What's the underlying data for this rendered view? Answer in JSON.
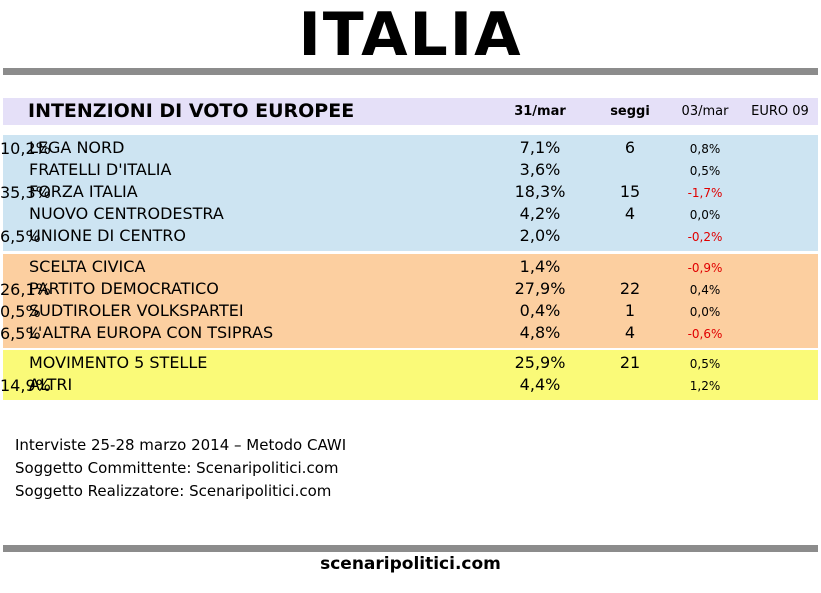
{
  "page": {
    "title": "ITALIA",
    "footer": "scenaripolitici.com"
  },
  "table": {
    "heading": "INTENZIONI DI VOTO EUROPEE",
    "columns": {
      "current": "31/mar",
      "seats": "seggi",
      "previous": "03/mar",
      "euro09": "EURO 09"
    },
    "groups": [
      {
        "color": "#cde4f2",
        "rows": [
          {
            "party": "LEGA NORD",
            "pct": "7,1%",
            "seats": "6",
            "diff": "0,8%",
            "euro09": "10,2%"
          },
          {
            "party": "FRATELLI D'ITALIA",
            "pct": "3,6%",
            "seats": "",
            "diff": "0,5%",
            "euro09": ""
          },
          {
            "party": "FORZA ITALIA",
            "pct": "18,3%",
            "seats": "15",
            "diff": "-1,7%",
            "euro09": "35,3%"
          },
          {
            "party": "NUOVO CENTRODESTRA",
            "pct": "4,2%",
            "seats": "4",
            "diff": "0,0%",
            "euro09": ""
          },
          {
            "party": "UNIONE DI CENTRO",
            "pct": "2,0%",
            "seats": "",
            "diff": "-0,2%",
            "euro09": "6,5%"
          }
        ]
      },
      {
        "color": "#fccfa0",
        "rows": [
          {
            "party": "SCELTA CIVICA",
            "pct": "1,4%",
            "seats": "",
            "diff": "-0,9%",
            "euro09": ""
          },
          {
            "party": "PARTITO DEMOCRATICO",
            "pct": "27,9%",
            "seats": "22",
            "diff": "0,4%",
            "euro09": "26,1%"
          },
          {
            "party": "SUDTIROLER VOLKSPARTEI",
            "pct": "0,4%",
            "seats": "1",
            "diff": "0,0%",
            "euro09": "0,5%"
          },
          {
            "party": "L'ALTRA EUROPA CON TSIPRAS",
            "pct": "4,8%",
            "seats": "4",
            "diff": "-0,6%",
            "euro09": "6,5%"
          }
        ]
      },
      {
        "color": "#fafa78",
        "rows": [
          {
            "party": "MOVIMENTO 5 STELLE",
            "pct": "25,9%",
            "seats": "21",
            "diff": "0,5%",
            "euro09": ""
          },
          {
            "party": "ALTRI",
            "pct": "4,4%",
            "seats": "",
            "diff": "1,2%",
            "euro09": "14,9%"
          }
        ]
      }
    ]
  },
  "notes": [
    "Interviste 25-28 marzo 2014 – Metodo CAWI",
    "Soggetto Committente: Scenaripolitici.com",
    "Soggetto Realizzatore: Scenaripolitici.com"
  ],
  "colors": {
    "negative": "#e00000",
    "rule": "#8c8c8c",
    "header_band": "#e5e0f8"
  },
  "chart_data": {
    "type": "table",
    "title": "ITALIA",
    "subtitle": "INTENZIONI DI VOTO EUROPEE",
    "columns": [
      "31/mar",
      "seggi",
      "03/mar",
      "EURO 09"
    ],
    "rows": [
      [
        "LEGA NORD",
        7.1,
        6,
        0.8,
        10.2
      ],
      [
        "FRATELLI D'ITALIA",
        3.6,
        null,
        0.5,
        null
      ],
      [
        "FORZA ITALIA",
        18.3,
        15,
        -1.7,
        35.3
      ],
      [
        "NUOVO CENTRODESTRA",
        4.2,
        4,
        0.0,
        null
      ],
      [
        "UNIONE DI CENTRO",
        2.0,
        null,
        -0.2,
        6.5
      ],
      [
        "SCELTA CIVICA",
        1.4,
        null,
        -0.9,
        null
      ],
      [
        "PARTITO DEMOCRATICO",
        27.9,
        22,
        0.4,
        26.1
      ],
      [
        "SUDTIROLER VOLKSPARTEI",
        0.4,
        1,
        0.0,
        0.5
      ],
      [
        "L'ALTRA EUROPA CON TSIPRAS",
        4.8,
        4,
        -0.6,
        6.5
      ],
      [
        "MOVIMENTO 5 STELLE",
        25.9,
        21,
        0.5,
        null
      ],
      [
        "ALTRI",
        4.4,
        null,
        1.2,
        14.9
      ]
    ]
  }
}
